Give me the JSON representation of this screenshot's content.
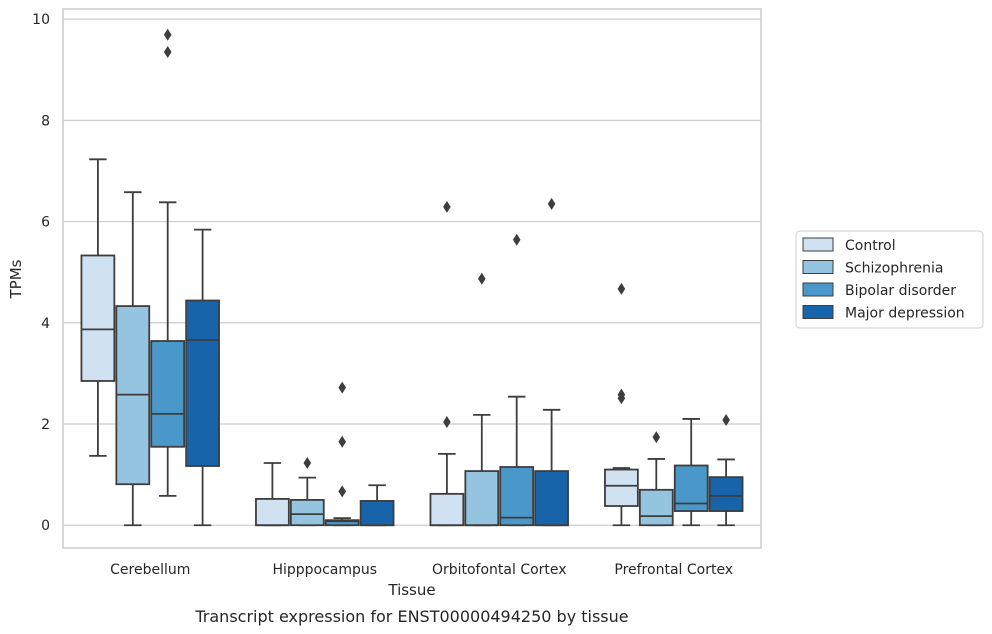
{
  "chart_data": {
    "type": "boxplot",
    "title": "Transcript expression for ENST00000494250 by tissue",
    "xlabel": "Tissue",
    "ylabel": "TPMs",
    "ylim": [
      -0.45,
      10.2
    ],
    "yticks": [
      0,
      2,
      4,
      6,
      8,
      10
    ],
    "grid": true,
    "legend_position": "right",
    "categories": [
      "Cerebellum",
      "Hipppocampus",
      "Orbitofontal Cortex",
      "Prefrontal Cortex"
    ],
    "series": [
      {
        "name": "Control",
        "color": "#d0e1f2",
        "boxes": [
          {
            "whislo": 1.37,
            "q1": 2.85,
            "med": 3.87,
            "q3": 5.33,
            "whishi": 7.23,
            "fliers": []
          },
          {
            "whislo": 0.0,
            "q1": 0.0,
            "med": 0.0,
            "q3": 0.52,
            "whishi": 1.23,
            "fliers": []
          },
          {
            "whislo": 0.0,
            "q1": 0.0,
            "med": 0.0,
            "q3": 0.62,
            "whishi": 1.41,
            "fliers": [
              2.04,
              6.29
            ]
          },
          {
            "whislo": 0.0,
            "q1": 0.38,
            "med": 0.78,
            "q3": 1.1,
            "whishi": 1.13,
            "fliers": [
              2.51,
              2.58,
              4.67
            ]
          }
        ]
      },
      {
        "name": "Schizophrenia",
        "color": "#94c4df",
        "boxes": [
          {
            "whislo": 0.0,
            "q1": 0.81,
            "med": 2.58,
            "q3": 4.33,
            "whishi": 6.58,
            "fliers": []
          },
          {
            "whislo": 0.0,
            "q1": 0.0,
            "med": 0.22,
            "q3": 0.5,
            "whishi": 0.94,
            "fliers": [
              1.23
            ]
          },
          {
            "whislo": 0.0,
            "q1": 0.0,
            "med": 0.0,
            "q3": 1.07,
            "whishi": 2.18,
            "fliers": [
              4.87
            ]
          },
          {
            "whislo": 0.0,
            "q1": 0.0,
            "med": 0.18,
            "q3": 0.7,
            "whishi": 1.31,
            "fliers": [
              1.74
            ]
          }
        ]
      },
      {
        "name": "Bipolar disorder",
        "color": "#4a98c9",
        "boxes": [
          {
            "whislo": 0.58,
            "q1": 1.55,
            "med": 2.2,
            "q3": 3.64,
            "whishi": 6.38,
            "fliers": [
              9.35,
              9.69
            ]
          },
          {
            "whislo": 0.0,
            "q1": 0.0,
            "med": 0.08,
            "q3": 0.1,
            "whishi": 0.14,
            "fliers": [
              0.67,
              1.65,
              2.72
            ]
          },
          {
            "whislo": 0.0,
            "q1": 0.0,
            "med": 0.15,
            "q3": 1.15,
            "whishi": 2.54,
            "fliers": [
              5.64
            ]
          },
          {
            "whislo": 0.0,
            "q1": 0.28,
            "med": 0.43,
            "q3": 1.18,
            "whishi": 2.1,
            "fliers": []
          }
        ]
      },
      {
        "name": "Major depression",
        "color": "#1764ab",
        "boxes": [
          {
            "whislo": 0.0,
            "q1": 1.17,
            "med": 3.66,
            "q3": 4.44,
            "whishi": 5.84,
            "fliers": []
          },
          {
            "whislo": 0.0,
            "q1": 0.0,
            "med": 0.0,
            "q3": 0.48,
            "whishi": 0.79,
            "fliers": []
          },
          {
            "whislo": 0.0,
            "q1": 0.0,
            "med": 0.0,
            "q3": 1.07,
            "whishi": 2.28,
            "fliers": [
              6.35
            ]
          },
          {
            "whislo": 0.0,
            "q1": 0.28,
            "med": 0.58,
            "q3": 0.95,
            "whishi": 1.3,
            "fliers": [
              2.08
            ]
          }
        ]
      }
    ]
  }
}
